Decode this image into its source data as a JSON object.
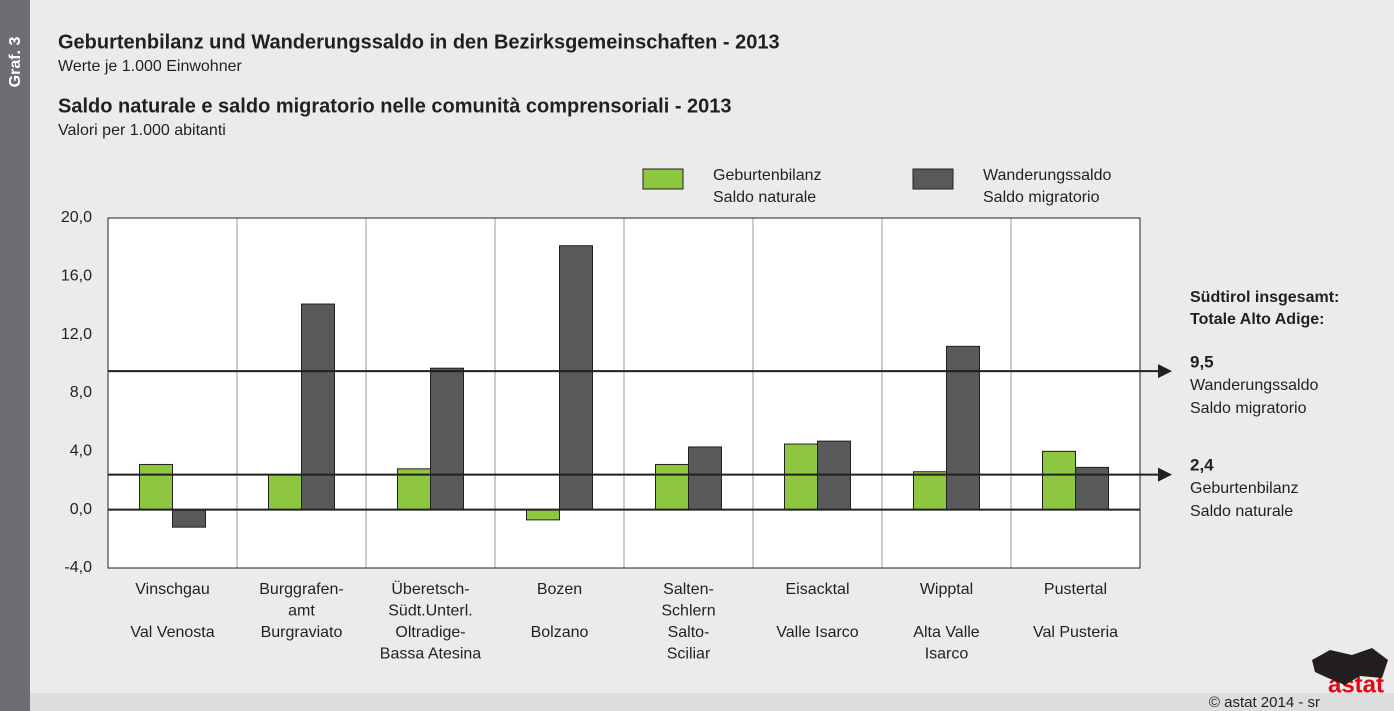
{
  "chart_data": {
    "type": "bar",
    "label": "Graf. 3",
    "title": "Geburtenbilanz und Wanderungssaldo in den Bezirksgemeinschaften - 2013",
    "subtitle": "Werte je 1.000 Einwohner",
    "title_it": "Saldo naturale e saldo migratorio nelle comunità comprensoriali - 2013",
    "subtitle_it": "Valori per 1.000 abitanti",
    "categories": [
      {
        "de": [
          "Vinschgau"
        ],
        "it": [
          "Val Venosta"
        ]
      },
      {
        "de": [
          "Burggrafen-",
          "amt"
        ],
        "it": [
          "Burgraviato"
        ]
      },
      {
        "de": [
          "Überetsch-",
          "Südt.Unterl."
        ],
        "it": [
          "Oltradige-",
          "Bassa Atesina"
        ]
      },
      {
        "de": [
          "Bozen"
        ],
        "it": [
          "Bolzano"
        ]
      },
      {
        "de": [
          "Salten-",
          "Schlern"
        ],
        "it": [
          "Salto-",
          "Sciliar"
        ]
      },
      {
        "de": [
          "Eisacktal"
        ],
        "it": [
          "Valle Isarco"
        ]
      },
      {
        "de": [
          "Wipptal"
        ],
        "it": [
          "Alta Valle",
          "Isarco"
        ]
      },
      {
        "de": [
          "Pustertal"
        ],
        "it": [
          "Val Pusteria"
        ]
      }
    ],
    "series": [
      {
        "name": [
          "Geburtenbilanz",
          "Saldo naturale"
        ],
        "color": "#8dc63f",
        "values": [
          3.1,
          2.4,
          2.8,
          -0.7,
          3.1,
          4.5,
          2.6,
          4.0
        ]
      },
      {
        "name": [
          "Wanderungssaldo",
          "Saldo migratorio"
        ],
        "color": "#58595b",
        "values": [
          -1.2,
          14.1,
          9.7,
          18.1,
          4.3,
          4.7,
          11.2,
          2.9
        ]
      }
    ],
    "ylim": [
      -4,
      20
    ],
    "yticks": [
      {
        "value": -4,
        "label": "-4,0"
      },
      {
        "value": 0,
        "label": "0,0"
      },
      {
        "value": 4,
        "label": "4,0"
      },
      {
        "value": 8,
        "label": "8,0"
      },
      {
        "value": 12,
        "label": "12,0"
      },
      {
        "value": 16,
        "label": "16,0"
      },
      {
        "value": 20,
        "label": "20,0"
      }
    ],
    "grid": true,
    "reference_title": [
      "Südtirol insgesamt:",
      "Totale Alto Adige:"
    ],
    "references": [
      {
        "value": 9.5,
        "label": "9,5",
        "lines": [
          "Wanderungssaldo",
          "Saldo migratorio"
        ]
      },
      {
        "value": 2.4,
        "label": "2,4",
        "lines": [
          "Geburtenbilanz",
          "Saldo naturale"
        ]
      }
    ],
    "source": "©  astat 2014 - sr",
    "logo": "astat"
  }
}
